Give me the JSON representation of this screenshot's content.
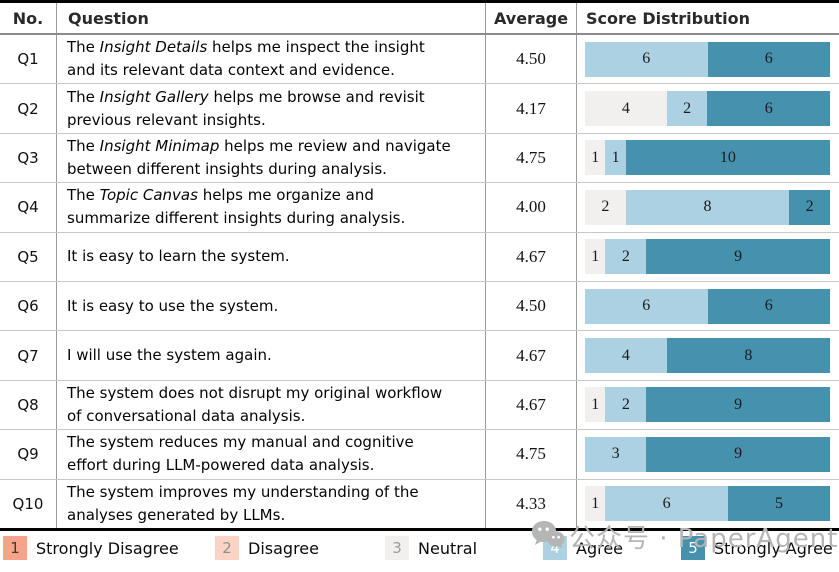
{
  "table": {
    "headers": {
      "no": "No.",
      "question": "Question",
      "average": "Average",
      "distribution": "Score Distribution"
    }
  },
  "legend": {
    "items": [
      {
        "value": "1",
        "label": "Strongly Disagree",
        "color": "#f6a489",
        "value_color": "#463731"
      },
      {
        "value": "2",
        "label": "Disagree",
        "color": "#fbd4c6",
        "value_color": "#8f8f8f"
      },
      {
        "value": "3",
        "label": "Neutral",
        "color": "#f1f0ee",
        "value_color": "#9c9c9c"
      },
      {
        "value": "4",
        "label": "Agree",
        "color": "#abd1e2",
        "value_color": "#ffffff"
      },
      {
        "value": "5",
        "label": "Strongly Agree",
        "color": "#4691ae",
        "value_color": "#ffffff"
      }
    ]
  },
  "watermark": {
    "text": "公众号 · PaperAgent"
  },
  "chart_data": {
    "type": "bar",
    "subtype": "horizontal-stacked",
    "title": "Score Distribution",
    "total_per_row": 12,
    "scale": [
      1,
      2,
      3,
      4,
      5
    ],
    "score_labels": {
      "1": "Strongly Disagree",
      "2": "Disagree",
      "3": "Neutral",
      "4": "Agree",
      "5": "Strongly Agree"
    },
    "score_colors": {
      "1": "#f6a489",
      "2": "#fbd4c6",
      "3": "#f1f0ee",
      "4": "#abd1e2",
      "5": "#4691ae"
    },
    "rows": [
      {
        "no": "Q1",
        "average": "4.50",
        "question_parts": [
          {
            "t": "The "
          },
          {
            "t": "Insight Details",
            "i": true
          },
          {
            "t": " helps me inspect the insight\nand its relevant data context and evidence."
          }
        ],
        "segments": [
          {
            "score": 4,
            "count": 6
          },
          {
            "score": 5,
            "count": 6
          }
        ]
      },
      {
        "no": "Q2",
        "average": "4.17",
        "question_parts": [
          {
            "t": "The "
          },
          {
            "t": "Insight Gallery",
            "i": true
          },
          {
            "t": " helps me browse and revisit\nprevious relevant insights."
          }
        ],
        "segments": [
          {
            "score": 3,
            "count": 4
          },
          {
            "score": 4,
            "count": 2
          },
          {
            "score": 5,
            "count": 6
          }
        ]
      },
      {
        "no": "Q3",
        "average": "4.75",
        "question_parts": [
          {
            "t": "The "
          },
          {
            "t": "Insight Minimap",
            "i": true
          },
          {
            "t": " helps me review and navigate\nbetween different insights during analysis."
          }
        ],
        "segments": [
          {
            "score": 3,
            "count": 1
          },
          {
            "score": 4,
            "count": 1
          },
          {
            "score": 5,
            "count": 10
          }
        ]
      },
      {
        "no": "Q4",
        "average": "4.00",
        "question_parts": [
          {
            "t": "The "
          },
          {
            "t": "Topic Canvas",
            "i": true
          },
          {
            "t": " helps me organize and\nsummarize different insights during analysis."
          }
        ],
        "segments": [
          {
            "score": 3,
            "count": 2
          },
          {
            "score": 4,
            "count": 8
          },
          {
            "score": 5,
            "count": 2
          }
        ]
      },
      {
        "no": "Q5",
        "average": "4.67",
        "question_parts": [
          {
            "t": "It is easy to learn the system."
          }
        ],
        "segments": [
          {
            "score": 3,
            "count": 1
          },
          {
            "score": 4,
            "count": 2
          },
          {
            "score": 5,
            "count": 9
          }
        ]
      },
      {
        "no": "Q6",
        "average": "4.50",
        "question_parts": [
          {
            "t": "It is easy to use the system."
          }
        ],
        "segments": [
          {
            "score": 4,
            "count": 6
          },
          {
            "score": 5,
            "count": 6
          }
        ]
      },
      {
        "no": "Q7",
        "average": "4.67",
        "question_parts": [
          {
            "t": "I will use the system again."
          }
        ],
        "segments": [
          {
            "score": 4,
            "count": 4
          },
          {
            "score": 5,
            "count": 8
          }
        ]
      },
      {
        "no": "Q8",
        "average": "4.67",
        "question_parts": [
          {
            "t": "The system does not disrupt my original workflow\nof conversational data analysis."
          }
        ],
        "segments": [
          {
            "score": 3,
            "count": 1
          },
          {
            "score": 4,
            "count": 2
          },
          {
            "score": 5,
            "count": 9
          }
        ]
      },
      {
        "no": "Q9",
        "average": "4.75",
        "question_parts": [
          {
            "t": "The system reduces my manual and cognitive\neffort during LLM-powered data analysis."
          }
        ],
        "segments": [
          {
            "score": 4,
            "count": 3
          },
          {
            "score": 5,
            "count": 9
          }
        ]
      },
      {
        "no": "Q10",
        "average": "4.33",
        "question_parts": [
          {
            "t": "The system improves my understanding of the\nanalyses generated by LLMs."
          }
        ],
        "segments": [
          {
            "score": 3,
            "count": 1
          },
          {
            "score": 4,
            "count": 6
          },
          {
            "score": 5,
            "count": 5
          }
        ]
      }
    ]
  }
}
